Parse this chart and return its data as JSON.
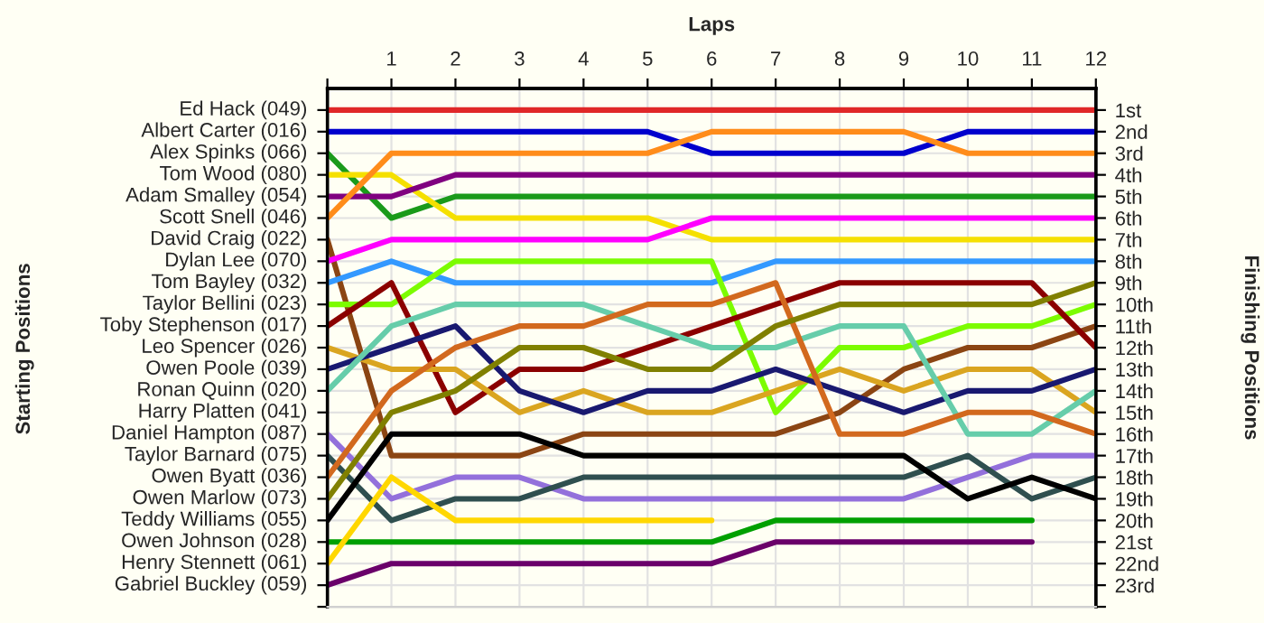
{
  "chart_data": {
    "type": "line",
    "xlabel": "Laps",
    "y2label": "Finishing Positions",
    "annotations": [
      "Starting Positions",
      "Ed Hack (049)",
      "Albert Carter (016)",
      "Alex Spinks (066)",
      "Tom Wood (080)",
      "Adam Smalley (054)",
      "Scott Snell (046)",
      "David Craig (022)",
      "Dylan Lee (070)",
      "Tom Bayley (032)",
      "Taylor Bellini (023)",
      "Toby Stephenson (017)",
      "Leo Spencer (026)",
      "Owen Poole (039)",
      "Ronan Quinn (020)",
      "Harry Platten (041)",
      "Daniel Hampton (087)",
      "Taylor Barnard (075)",
      "Owen Byatt (036)",
      "Owen Marlow (073)",
      "Teddy Williams (055)",
      "Owen Johnson (028)",
      "Henry Stennett (061)",
      "Gabriel Buckley (059)"
    ],
    "x": [
      0,
      1,
      2,
      3,
      4,
      5,
      6,
      7,
      8,
      9,
      10,
      11,
      12
    ],
    "xlim": [
      0,
      12
    ],
    "xticks": [
      {
        "value": 0,
        "label": null
      },
      1,
      2,
      3,
      4,
      5,
      6,
      7,
      8,
      9,
      10,
      11,
      12
    ],
    "y2lim": [
      24,
      0
    ],
    "y2ticks": [
      {
        "value": 1,
        "label": "1st"
      },
      {
        "value": 2,
        "label": "2nd"
      },
      {
        "value": 3,
        "label": "3rd"
      },
      {
        "value": 4,
        "label": "4th"
      },
      {
        "value": 5,
        "label": "5th"
      },
      {
        "value": 6,
        "label": "6th"
      },
      {
        "value": 7,
        "label": "7th"
      },
      {
        "value": 8,
        "label": "8th"
      },
      {
        "value": 9,
        "label": "9th"
      },
      {
        "value": 10,
        "label": "10th"
      },
      {
        "value": 11,
        "label": "11th"
      },
      {
        "value": 12,
        "label": "12th"
      },
      {
        "value": 13,
        "label": "13th"
      },
      {
        "value": 14,
        "label": "14th"
      },
      {
        "value": 15,
        "label": "15th"
      },
      {
        "value": 16,
        "label": "16th"
      },
      {
        "value": 17,
        "label": "17th"
      },
      {
        "value": 18,
        "label": "18th"
      },
      {
        "value": 19,
        "label": "19th"
      },
      {
        "value": 20,
        "label": "20th"
      },
      {
        "value": 21,
        "label": "21st"
      },
      {
        "value": 22,
        "label": "22nd"
      },
      {
        "value": 23,
        "label": "23rd"
      },
      {
        "value": 24,
        "label": null
      }
    ],
    "grid": true,
    "marker": "none",
    "line_style": "solid",
    "series": [
      {
        "axis": "y2",
        "color": "#e02828",
        "values": [
          1,
          1,
          1,
          1,
          1,
          1,
          1,
          1,
          1,
          1,
          1,
          1,
          1
        ]
      },
      {
        "axis": "y2",
        "color": "#0000cd",
        "values": [
          2,
          2,
          2,
          2,
          2,
          2,
          3,
          3,
          3,
          3,
          2,
          2,
          2
        ]
      },
      {
        "axis": "y2",
        "color": "#1a9a1a",
        "values": [
          3,
          6,
          5,
          5,
          5,
          5,
          5,
          5,
          5,
          5,
          5,
          5,
          5
        ]
      },
      {
        "axis": "y2",
        "color": "#f5e000",
        "values": [
          4,
          4,
          6,
          6,
          6,
          6,
          7,
          7,
          7,
          7,
          7,
          7,
          7
        ]
      },
      {
        "axis": "y2",
        "color": "#800080",
        "values": [
          5,
          5,
          4,
          4,
          4,
          4,
          4,
          4,
          4,
          4,
          4,
          4,
          4
        ]
      },
      {
        "axis": "y2",
        "color": "#ff8c1a",
        "values": [
          6,
          3,
          3,
          3,
          3,
          3,
          2,
          2,
          2,
          2,
          3,
          3,
          3
        ]
      },
      {
        "axis": "y2",
        "color": "#8b4513",
        "values": [
          7,
          17,
          17,
          17,
          16,
          16,
          16,
          16,
          15,
          13,
          12,
          12,
          11
        ]
      },
      {
        "axis": "y2",
        "color": "#ff00ff",
        "values": [
          8,
          7,
          7,
          7,
          7,
          7,
          6,
          6,
          6,
          6,
          6,
          6,
          6
        ]
      },
      {
        "axis": "y2",
        "color": "#3399ff",
        "values": [
          9,
          8,
          9,
          9,
          9,
          9,
          9,
          8,
          8,
          8,
          8,
          8,
          8
        ]
      },
      {
        "axis": "y2",
        "color": "#7cfc00",
        "values": [
          10,
          10,
          8,
          8,
          8,
          8,
          8,
          15,
          12,
          12,
          11,
          11,
          10
        ]
      },
      {
        "axis": "y2",
        "color": "#8b0000",
        "values": [
          11,
          9,
          15,
          13,
          13,
          12,
          11,
          10,
          9,
          9,
          9,
          9,
          12
        ]
      },
      {
        "axis": "y2",
        "color": "#daa520",
        "values": [
          12,
          13,
          13,
          15,
          14,
          15,
          15,
          14,
          13,
          14,
          13,
          13,
          15
        ]
      },
      {
        "axis": "y2",
        "color": "#191970",
        "values": [
          13,
          12,
          11,
          14,
          15,
          14,
          14,
          13,
          14,
          15,
          14,
          14,
          13
        ]
      },
      {
        "axis": "y2",
        "color": "#66cdaa",
        "values": [
          14,
          11,
          10,
          10,
          10,
          11,
          12,
          12,
          11,
          11,
          16,
          16,
          14
        ]
      },
      {
        "axis": "y2",
        "color": "#9370db",
        "values": [
          16,
          19,
          18,
          18,
          19,
          19,
          19,
          19,
          19,
          19,
          18,
          17,
          17
        ]
      },
      {
        "axis": "y2",
        "color": "#2f4f4f",
        "values": [
          17,
          20,
          19,
          19,
          18,
          18,
          18,
          18,
          18,
          18,
          17,
          19,
          18
        ]
      },
      {
        "axis": "y2",
        "color": "#d2691e",
        "values": [
          18,
          14,
          12,
          11,
          11,
          10,
          10,
          9,
          16,
          16,
          15,
          15,
          16
        ]
      },
      {
        "axis": "y2",
        "color": "#808000",
        "values": [
          19,
          15,
          14,
          12,
          12,
          13,
          13,
          11,
          10,
          10,
          10,
          10,
          9
        ]
      },
      {
        "axis": "y2",
        "color": "#000000",
        "values": [
          20,
          16,
          16,
          16,
          17,
          17,
          17,
          17,
          17,
          17,
          19,
          18,
          19
        ]
      },
      {
        "axis": "y2",
        "color": "#00a000",
        "values": [
          21,
          21,
          21,
          21,
          21,
          21,
          21,
          20,
          20,
          20,
          20,
          20,
          null
        ]
      },
      {
        "axis": "y2",
        "color": "#ffd700",
        "values": [
          22,
          18,
          20,
          20,
          20,
          20,
          20,
          null,
          null,
          null,
          null,
          null,
          null
        ]
      },
      {
        "axis": "y2",
        "color": "#6a006a",
        "values": [
          23,
          22,
          22,
          22,
          22,
          22,
          22,
          21,
          21,
          21,
          21,
          21,
          null
        ]
      }
    ]
  }
}
